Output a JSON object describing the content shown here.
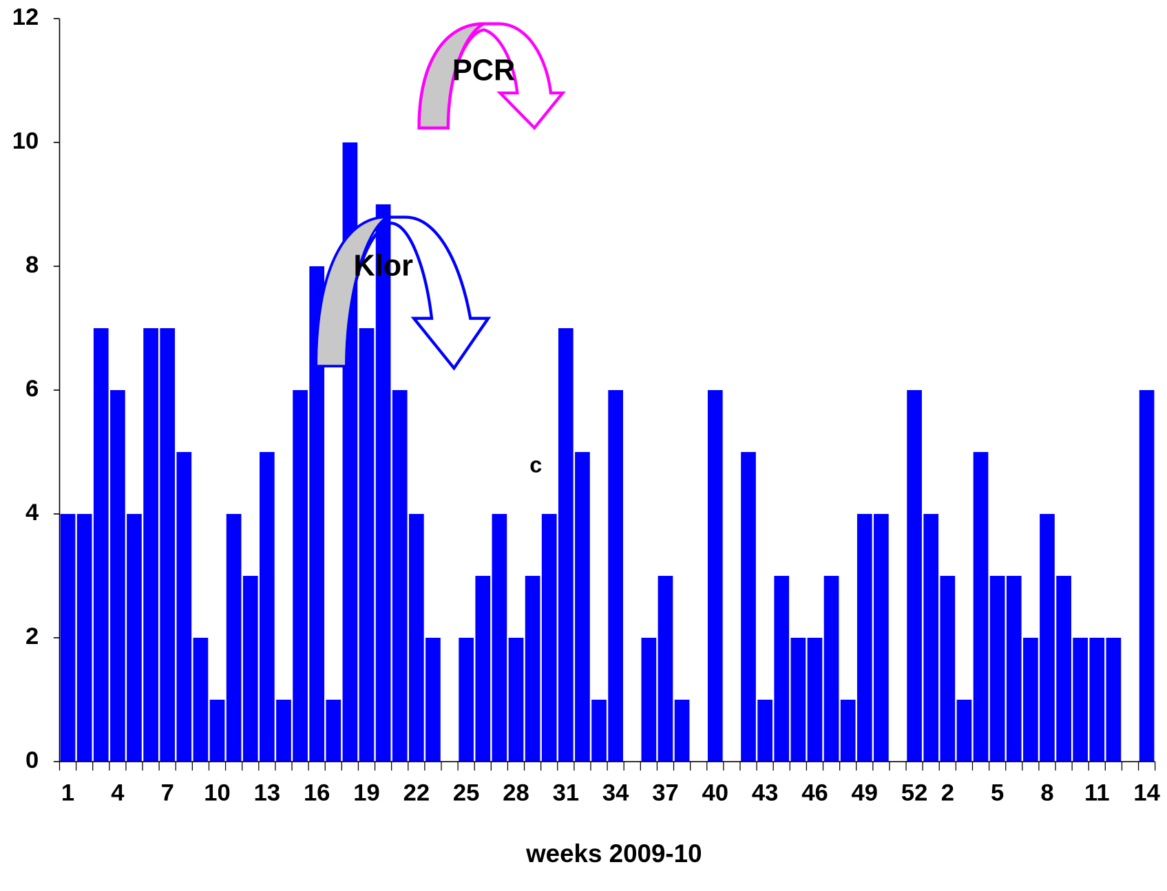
{
  "chart_data": {
    "type": "bar",
    "xlabel": "weeks 2009-10",
    "annotations": [
      "PCR",
      "Klor",
      "c"
    ],
    "categories": [
      "1",
      null,
      null,
      "4",
      null,
      null,
      "7",
      null,
      null,
      "10",
      null,
      null,
      "13",
      null,
      null,
      "16",
      null,
      null,
      "19",
      null,
      null,
      "22",
      null,
      null,
      "25",
      null,
      null,
      "28",
      null,
      null,
      "31",
      null,
      null,
      "34",
      null,
      null,
      "37",
      null,
      null,
      "40",
      null,
      null,
      "43",
      null,
      null,
      "46",
      null,
      null,
      "49",
      null,
      null,
      "52",
      null,
      "2",
      null,
      null,
      "5",
      null,
      null,
      "8",
      null,
      null,
      "11",
      null,
      null,
      "14"
    ],
    "values": [
      4,
      4,
      7,
      6,
      4,
      7,
      7,
      5,
      2,
      1,
      4,
      3,
      5,
      1,
      6,
      8,
      1,
      10,
      7,
      9,
      6,
      4,
      2,
      0,
      2,
      3,
      4,
      2,
      3,
      4,
      7,
      5,
      1,
      6,
      0,
      2,
      3,
      1,
      0,
      6,
      0,
      5,
      1,
      3,
      2,
      2,
      3,
      1,
      4,
      4,
      0,
      6,
      4,
      3,
      1,
      5,
      3,
      3,
      2,
      4,
      3,
      2,
      2,
      2,
      0,
      6
    ],
    "color": "#0000ff",
    "ylim": [
      0,
      12
    ],
    "yticks": [
      0,
      2,
      4,
      6,
      8,
      10,
      12
    ]
  }
}
